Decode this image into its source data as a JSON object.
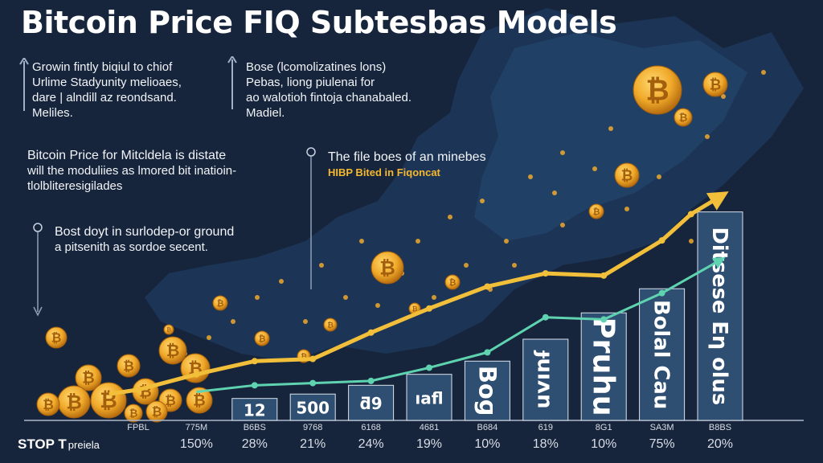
{
  "title": "Bitcoin Price FIQ Subtesbas Models",
  "notes": {
    "top_left": [
      "Growin fintly biqiul to chiof",
      "Urlime Stadyunity melioaes,",
      "dare | alndill az reondsand.",
      "Meliles."
    ],
    "top_middle": [
      "Bose (lcomolizatines lons)",
      "Pebas, liong piulenai for",
      "ao walotioh fintoja chanabaled.",
      "Madiel."
    ],
    "middle_left": [
      "Bitcoin Price for Mitcldela is distate",
      "will the moduliies as lmored bit inatioin-",
      "tlolbliteresigilades"
    ],
    "middle_center": "The file boes of an minebes",
    "middle_center_highlight": "HIBP Bited in Fiqoncat",
    "lower_left": [
      "Bost doyt in surlodep-or ground",
      "a pitsenith as sordoe secent."
    ]
  },
  "brand": {
    "name": "STOP T",
    "suffix": "preiela"
  },
  "colors": {
    "background": "#16253c",
    "bar": "#2e4f72",
    "bar_edge": "#dbe3ee",
    "gold_line": "#f2bf3a",
    "teal_line": "#5fd3b0",
    "coin": "#f0a92a"
  },
  "chart_data": {
    "type": "bar",
    "title": "Bitcoin Price FIQ Subtesbas Models",
    "xlabel": "",
    "ylabel": "",
    "ylim": [
      0,
      100
    ],
    "categories": [
      "FPBL",
      "775M",
      "B6BS",
      "9768",
      "6168",
      "4681",
      "B684",
      "619",
      "8G1",
      "SA3M",
      "B8BS"
    ],
    "percent_labels": [
      "150%",
      "28%",
      "21%",
      "24%",
      "19%",
      "10%",
      "18%",
      "10%",
      "75%",
      "20%"
    ],
    "bars": [
      {
        "category": "B6BS",
        "value": 10,
        "label": "12"
      },
      {
        "category": "9768",
        "value": 12,
        "label": "500"
      },
      {
        "category": "6168",
        "value": 16,
        "label": "ƌ9"
      },
      {
        "category": "4681",
        "value": 21,
        "label": "ıafl"
      },
      {
        "category": "B684",
        "value": 27,
        "label": "Boɡ"
      },
      {
        "category": "619",
        "value": 37,
        "label": "ɟuıʌn"
      },
      {
        "category": "8G1",
        "value": 49,
        "label": "Pruhu"
      },
      {
        "category": "SA3M",
        "value": 60,
        "label": "Bolal Cau"
      },
      {
        "category": "B8BS",
        "value": 95,
        "label": "Ditsese Eƞ olus"
      }
    ],
    "series": [
      {
        "name": "gold trend",
        "x": [
          0.5,
          1,
          2,
          3,
          4,
          5,
          6,
          7,
          8,
          9,
          10,
          10.5,
          11
        ],
        "values": [
          12,
          14,
          21,
          27,
          28,
          40,
          51,
          61,
          67,
          66,
          82,
          94,
          102
        ]
      },
      {
        "name": "teal trend",
        "x": [
          2,
          3,
          4,
          5,
          6,
          7,
          8,
          9,
          10,
          11
        ],
        "values": [
          13,
          16,
          17,
          18,
          24,
          31,
          47,
          46,
          58,
          73
        ]
      }
    ]
  }
}
